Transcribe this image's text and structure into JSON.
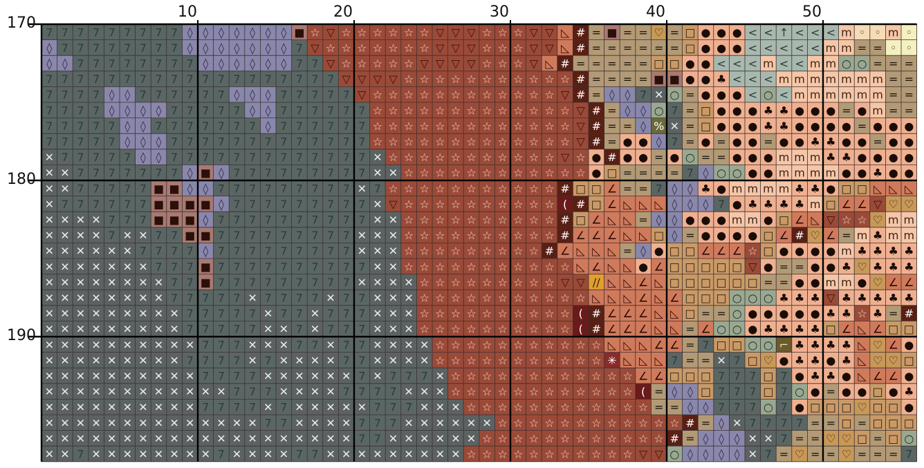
{
  "pattern": {
    "col_labels": [
      "10",
      "20",
      "30",
      "40",
      "50"
    ],
    "row_labels": [
      "170",
      "180",
      "190"
    ],
    "legend": {
      "a": {
        "bg": "#5a6664",
        "sym": "7",
        "fg": "#2f3a3a",
        "icon": "seven-glyph"
      },
      "x": {
        "bg": "#5c6262",
        "sym": "✕",
        "fg": "#e8ecec",
        "icon": "x-glyph"
      },
      "d": {
        "bg": "#8a87ac",
        "sym": "◊",
        "fg": "#2e2c44",
        "icon": "diamond-outline"
      },
      "s": {
        "bg": "#9b4a38",
        "sym": "☆",
        "fg": "#f3dcd2",
        "icon": "star-outline"
      },
      "t": {
        "bg": "#9b4a38",
        "sym": "▽",
        "fg": "#3b120a",
        "icon": "triangle-down-outline"
      },
      "p": {
        "bg": "#a87a72",
        "sym": "■",
        "fg": "#2b0f0a",
        "icon": "small-square"
      },
      "h": {
        "bg": "#5a1f14",
        "sym": "#",
        "fg": "#ffffff",
        "icon": "hash-glyph"
      },
      "c": {
        "bg": "#6b1a1a",
        "sym": "(",
        "fg": "#ffffff",
        "icon": "paren-glyph"
      },
      "e": {
        "bg": "#b39a76",
        "sym": "=",
        "fg": "#1f1a12",
        "icon": "equals-glyph"
      },
      "q": {
        "bg": "#c99a68",
        "sym": "□",
        "fg": "#2e1e10",
        "icon": "square-outline"
      },
      "o": {
        "bg": "#f0b090",
        "sym": "●",
        "fg": "#1a0d08",
        "icon": "filled-circle"
      },
      "k": {
        "bg": "#f0b090",
        "sym": "♣",
        "fg": "#1a0d08",
        "icon": "club-glyph"
      },
      "m": {
        "bg": "#f6c6a8",
        "sym": "m",
        "fg": "#3a2418",
        "icon": "m-glyph"
      },
      "r": {
        "bg": "#d07a5c",
        "sym": "◺",
        "fg": "#3a140a",
        "icon": "corner-triangle"
      },
      "l": {
        "bg": "#d07a5c",
        "sym": "∠",
        "fg": "#2a0a04",
        "icon": "angle-glyph"
      },
      "g": {
        "bg": "#9aa892",
        "sym": "○",
        "fg": "#1e2a1e",
        "icon": "circle-outline"
      },
      "b": {
        "bg": "#a8b8ae",
        "sym": "<",
        "fg": "#2a3830",
        "icon": "chevron-left-glyph"
      },
      "u": {
        "bg": "#a8b8ae",
        "sym": "↑",
        "fg": "#2a3830",
        "icon": "arrow-up-glyph"
      },
      "y": {
        "bg": "#f6dcb6",
        "sym": "◦",
        "fg": "#4a3a2a",
        "icon": "small-circle"
      },
      "w": {
        "bg": "#f4f0c0",
        "sym": "◦",
        "fg": "#4a3a2a",
        "icon": "small-circle"
      },
      "v": {
        "bg": "#c89858",
        "sym": "♡",
        "fg": "#3a2010",
        "icon": "heart-outline"
      },
      "f": {
        "bg": "#6b5a2e",
        "sym": "⌐",
        "fg": "#f0e0b0",
        "icon": "corner-glyph"
      },
      "z": {
        "bg": "#e0a030",
        "sym": "//",
        "fg": "#3a2000",
        "icon": "slash-glyph"
      },
      "n": {
        "bg": "#8a2a2a",
        "sym": "✳",
        "fg": "#ffffff",
        "icon": "asterisk-glyph"
      },
      "j": {
        "bg": "#6a6a3a",
        "sym": "%",
        "fg": "#ffffff",
        "icon": "percent-glyph"
      }
    },
    "grid": [
      "aaaaaaaaadddddddpstsssssstttsssttrhepeeveqooobbubbbmyymw",
      "daaaaaaaadddddddatssssssstttsssttrheeeeeeqooobbbbbmmeew",
      "ddaaaaaaaaddddddaatsssssttttssstrheeeeeqqoobbbmbbmmggee",
      "aaaaaaaaaaaaaaaaaaattttsssssssssssheeeeppookbbbmmmmmmme",
      "aaaaddaaaaaadddaaaaatsssssssssssstheddaxgeooobgbmmmmmme",
      "aaaaddddaaaaaddaaaaaassssssssssssstheddgaeqoookkoooeome",
      "aaaaaddaaaaaaadaaaaaassssssssssssstheedjxeqoookkooooeoo",
      "aaaaadddaaaaaaaaaaaaassssssssssssstheoodaeoeooeookkooeoo",
      "xaaaaaddaaaaaaaaaaaaaxssssssssssstsohooeogeeooommmkkooo",
      "xxaaaaaaadpdaaaaaaaaaxxssssssssssssoqeeeeadggoommmmooko",
      "xxaaaaappddaaaaaaaaaxassssssssssshqqleeaddkommmmkkoqqrr",
      "xaaaaaappppdaaaaaaaaaxtsssssssssschqlrrrdddaokkkkmqlltv",
      "xxxxaaapppdaaaaaaaaaaxxsssssssssshqlrreddooommoqlrtssvm",
      "xxxxaxxaappaaaaaaaaaxxxsssssssssshlllrrqdeooooqlhvlemkm",
      "xxxxxxaaaadaaaaaaaaaxxxssssssssshlrrredoqqlllsqoooomkk",
      "xxxxxxxaaapaaaaaaaaaaxxsssssssssssrlrrolqqqqqtoeeookvk",
      "xxxxxxxxaapaaaaaaaaaxxxxsssssssssttzrrlrqqqqqqeeoommovl",
      "xxxxxxxxaaaaaxaaaaxaaxxxsssssssssssrrrlrlqqqgggkkktkk",
      "xxxxxxxxxaaaaaxaaxaaaxxxsssssssssschlllrrqeegoooookkskeh",
      "xxxxxxxxxaaaaaxxaxaaaxxxsssssssssschlllrrelggokkkkqlrlq",
      "xxxxxxxxxxaaaxxxaaxaaxxxxsssssssssssrrrlleaqqggfkkkkrvlok",
      "xxxxxxxxxaaaaxaxxxxaaxxxxsssssssssssnrrraeexaqvokkokrvvqe",
      "xxxxxxxxxxaaaaxxxxxxaxaaaxssssssssssssllqqqaaaqaokkorllok",
      "xxxxxxxxxxxxaaaxxxxaaaaxxxssssssssssssceddqaaaqagoeooqoko",
      "xxxxxxxxxxaaaaxaxxxxxaaaxxxsssssssssssseeddaaagaoqqqvqqoko",
      "xxxxxxxxxxxxxxaaxxxxaaaxxxxxxsssssssssssshedxaaaaeeqeqqqdd",
      "xxxxxxxxxxxxxxxxxxxxaaxxxxxxsssssssssssshedddxxaeevvqeqgaa",
      "xxaxxxxxxxxaxxxxaaxxxxxxxxxsssssssssssttgddddxaeveeveeeaa"
    ]
  }
}
